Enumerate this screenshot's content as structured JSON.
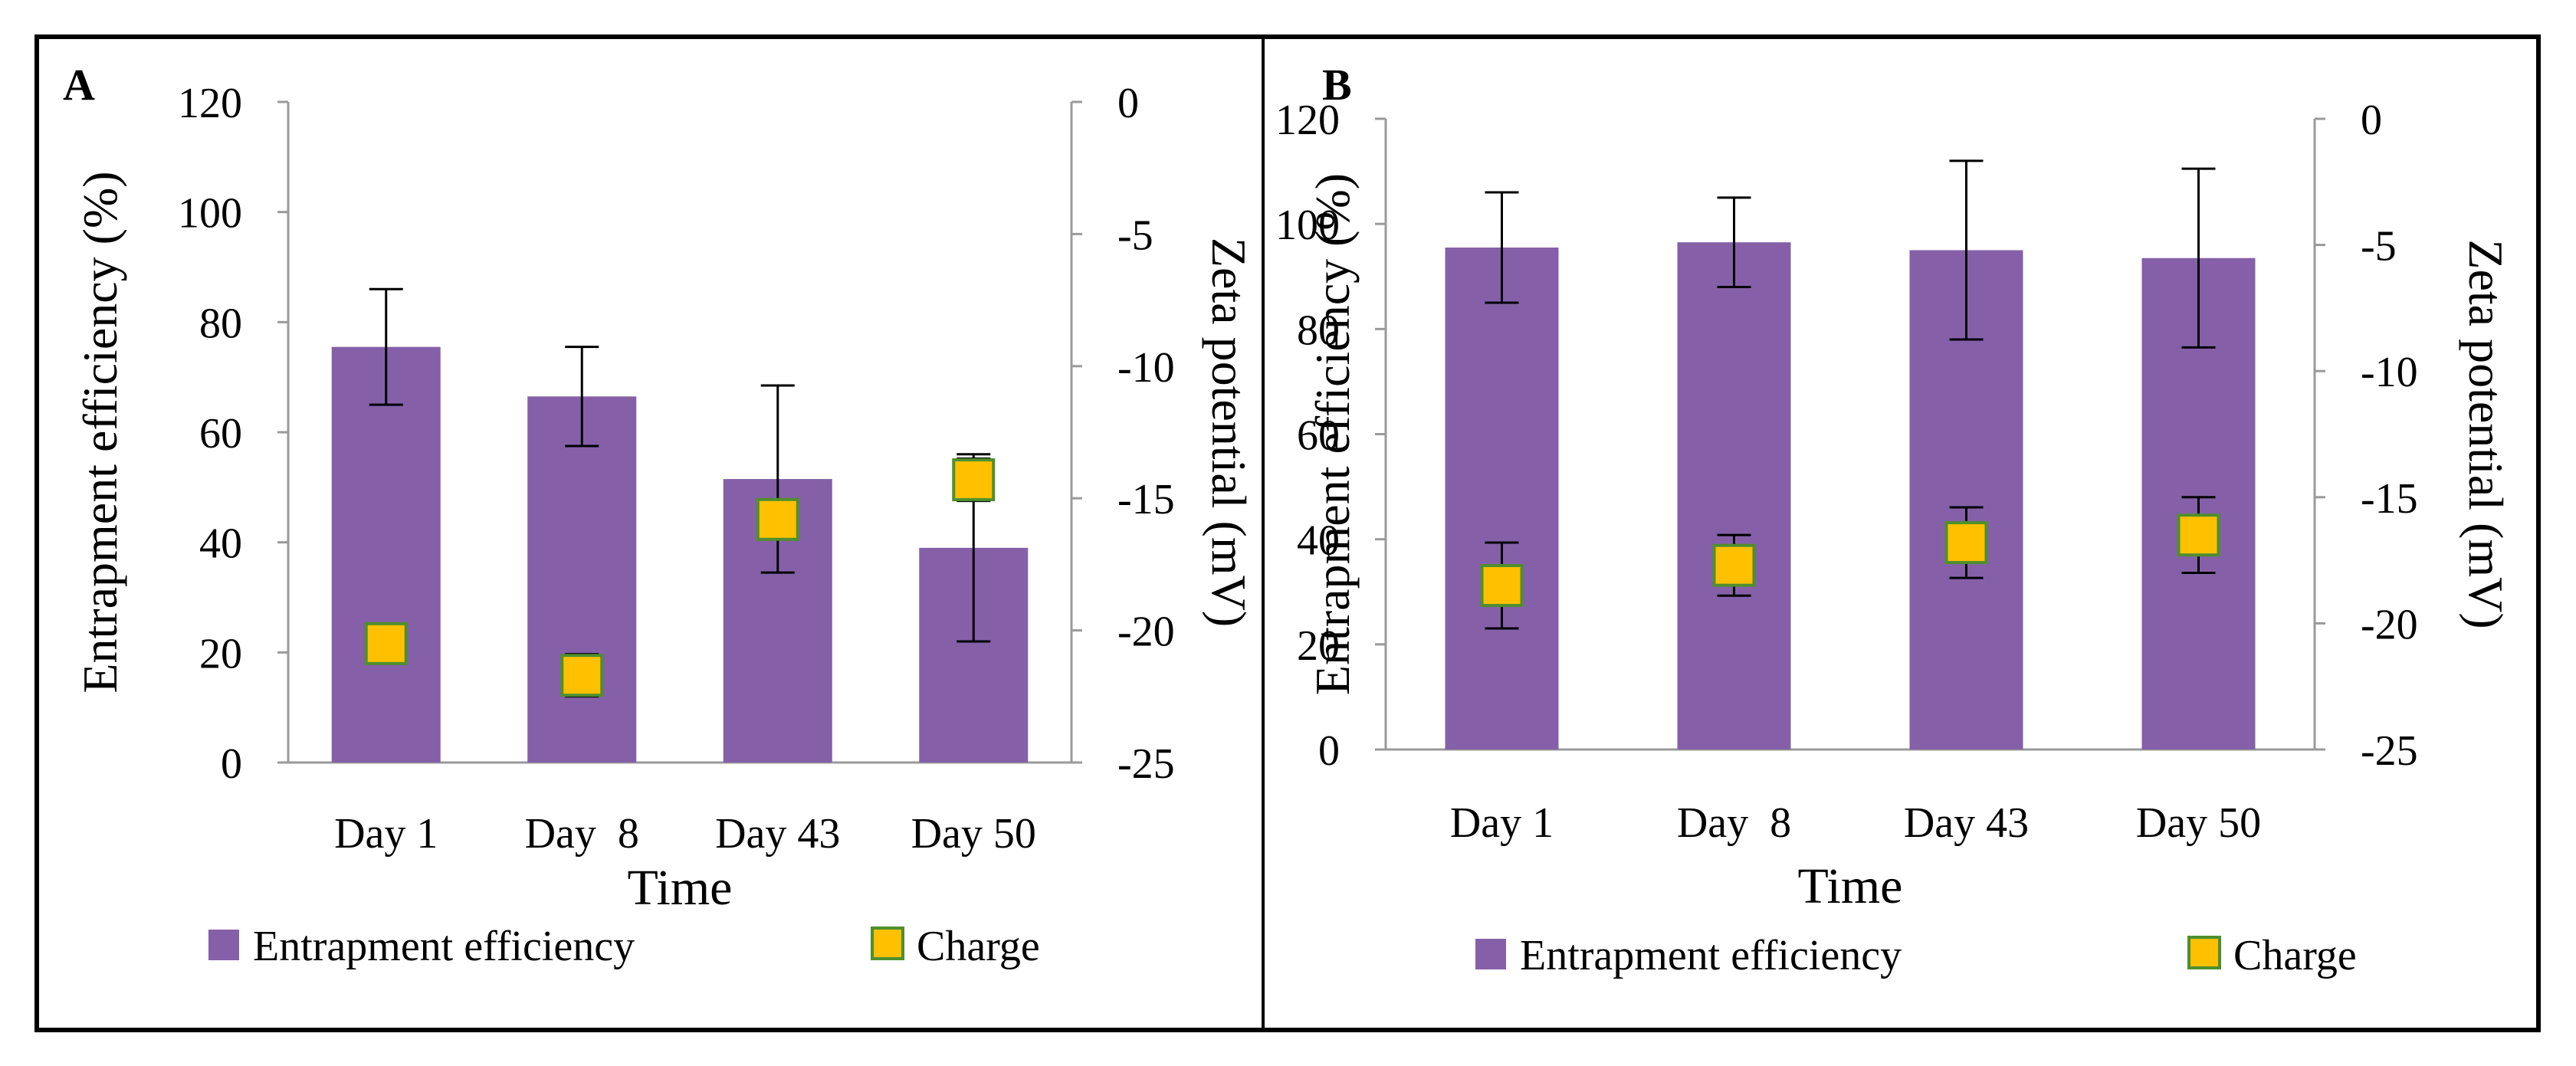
{
  "colors": {
    "bar": "#8560A8",
    "marker_fill": "#FFC000",
    "marker_stroke": "#4E8F2E",
    "axis": "#9A9A9A",
    "frame": "#000000"
  },
  "legend": {
    "bar_label": "Entrapment efficiency",
    "marker_label": "Charge"
  },
  "chart_data": [
    {
      "panel": "A",
      "type": "bar",
      "title": "",
      "categories": [
        "Day 1",
        "Day  8",
        "Day 43",
        "Day 50"
      ],
      "xlabel": "Time",
      "ylabel": "Entrapment efficiency (%)",
      "y2label": "Zeta potential (mV)",
      "ylim": [
        0,
        120
      ],
      "yticks": [
        0,
        20,
        40,
        60,
        80,
        100,
        120
      ],
      "y2lim": [
        -25,
        0
      ],
      "y2ticks": [
        0,
        -5,
        -10,
        -15,
        -20,
        -25
      ],
      "grid": false,
      "legend_position": "bottom",
      "series": [
        {
          "name": "Entrapment efficiency",
          "axis": "primary",
          "kind": "bar",
          "values": [
            75.5,
            66.5,
            51.5,
            39
          ],
          "errors": [
            10.5,
            9,
            17,
            17
          ]
        },
        {
          "name": "Charge",
          "axis": "secondary",
          "kind": "marker",
          "values": [
            -20.5,
            -21.7,
            -15.8,
            -14.3
          ],
          "errors": [
            0,
            0.8,
            0,
            0.8
          ]
        }
      ]
    },
    {
      "panel": "B",
      "type": "bar",
      "title": "",
      "categories": [
        "Day 1",
        "Day  8",
        "Day 43",
        "Day 50"
      ],
      "xlabel": "Time",
      "ylabel": "Entrapment efficiency (%)",
      "y2label": "Zeta potential (mV)",
      "ylim": [
        0,
        120
      ],
      "yticks": [
        0,
        20,
        40,
        60,
        80,
        100,
        120
      ],
      "y2lim": [
        -25,
        0
      ],
      "y2ticks": [
        0,
        -5,
        -10,
        -15,
        -20,
        -25
      ],
      "grid": false,
      "legend_position": "bottom",
      "series": [
        {
          "name": "Entrapment efficiency",
          "axis": "primary",
          "kind": "bar",
          "values": [
            95.5,
            96.5,
            95,
            93.5
          ],
          "errors": [
            10.5,
            8.5,
            17,
            17
          ]
        },
        {
          "name": "Charge",
          "axis": "secondary",
          "kind": "marker",
          "values": [
            -18.5,
            -17.7,
            -16.8,
            -16.5
          ],
          "errors": [
            1.7,
            1.2,
            1.4,
            1.5
          ]
        }
      ]
    }
  ]
}
